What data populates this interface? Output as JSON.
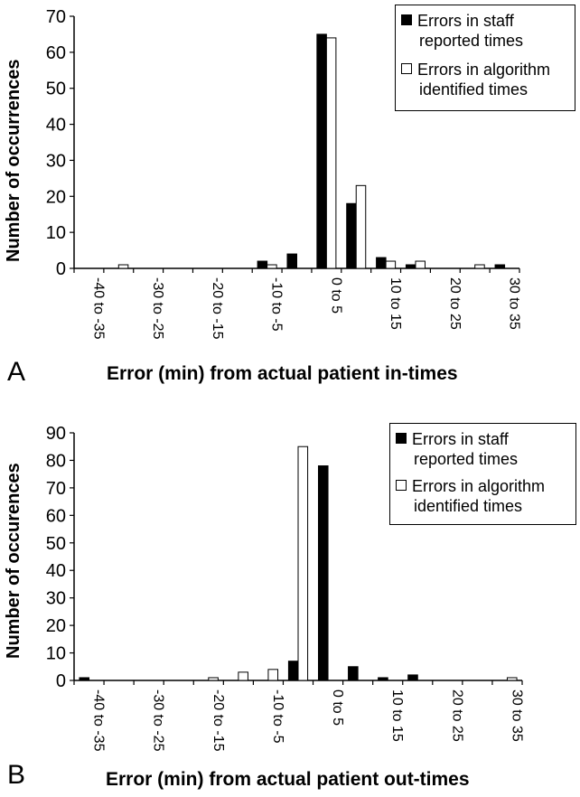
{
  "chart_data": [
    {
      "panel_label": "A",
      "type": "bar",
      "xlabel": "Error (min) from actual patient in-times",
      "ylabel": "Number of occurrences",
      "ylim": [
        0,
        70
      ],
      "yticks": [
        0,
        10,
        20,
        30,
        40,
        50,
        60,
        70
      ],
      "categories": [
        "-40 to -35",
        "-35 to -30",
        "-30 to -25",
        "-25 to -20",
        "-20 to -15",
        "-15 to -10",
        "-10 to -5",
        "-5 to 0",
        "0 to 5",
        "5 to 10",
        "10 to 15",
        "15 to 20",
        "20 to 25",
        "25 to 30",
        "30 to 35"
      ],
      "tick_labels": [
        "-40 to -35",
        "",
        "-30 to -25",
        "",
        "-20 to -15",
        "",
        "-10 to -5",
        "",
        "0 to 5",
        "",
        "10 to 15",
        "",
        "20 to 25",
        "",
        "30 to 35"
      ],
      "legend_position": "top-right",
      "series": [
        {
          "name": "Errors in staff reported times",
          "color": "#000000",
          "values": [
            0,
            0,
            0,
            0,
            0,
            0,
            2,
            4,
            65,
            18,
            3,
            1,
            0,
            0,
            1
          ]
        },
        {
          "name": "Errors in algorithm identified times",
          "color": "#ffffff",
          "values": [
            0,
            1,
            0,
            0,
            0,
            0,
            1,
            0,
            64,
            23,
            2,
            2,
            0,
            1,
            0
          ]
        }
      ],
      "legend_lines": [
        [
          "Errors in staff",
          "reported times"
        ],
        [
          "Errors in algorithm",
          "identified times"
        ]
      ]
    },
    {
      "panel_label": "B",
      "type": "bar",
      "xlabel": "Error (min) from actual patient out-times",
      "ylabel": "Number of occurences",
      "ylim": [
        0,
        90
      ],
      "yticks": [
        0,
        10,
        20,
        30,
        40,
        50,
        60,
        70,
        80,
        90
      ],
      "categories": [
        "-40 to -35",
        "-35 to -30",
        "-30 to -25",
        "-25 to -20",
        "-20 to -15",
        "-15 to -10",
        "-10 to -5",
        "-5 to 0",
        "0 to 5",
        "5 to 10",
        "10 to 15",
        "15 to 20",
        "20 to 25",
        "25 to 30",
        "30 to 35"
      ],
      "tick_labels": [
        "-40 to -35",
        "",
        "-30 to -25",
        "",
        "-20 to -15",
        "",
        "-10 to -5",
        "",
        "0 to 5",
        "",
        "10 to 15",
        "",
        "20 to 25",
        "",
        "30 to 35"
      ],
      "legend_position": "top-right",
      "series": [
        {
          "name": "Errors in staff reported times",
          "color": "#000000",
          "values": [
            1,
            0,
            0,
            0,
            0,
            0,
            0,
            7,
            78,
            5,
            1,
            2,
            0,
            0,
            0
          ]
        },
        {
          "name": "Errors in algorithm identified times",
          "color": "#ffffff",
          "values": [
            0,
            0,
            0,
            0,
            1,
            3,
            4,
            85,
            0,
            0,
            0,
            0,
            0,
            0,
            1
          ]
        }
      ],
      "legend_lines": [
        [
          "Errors in staff",
          "reported times"
        ],
        [
          "Errors in algorithm",
          "identified times"
        ]
      ]
    }
  ]
}
